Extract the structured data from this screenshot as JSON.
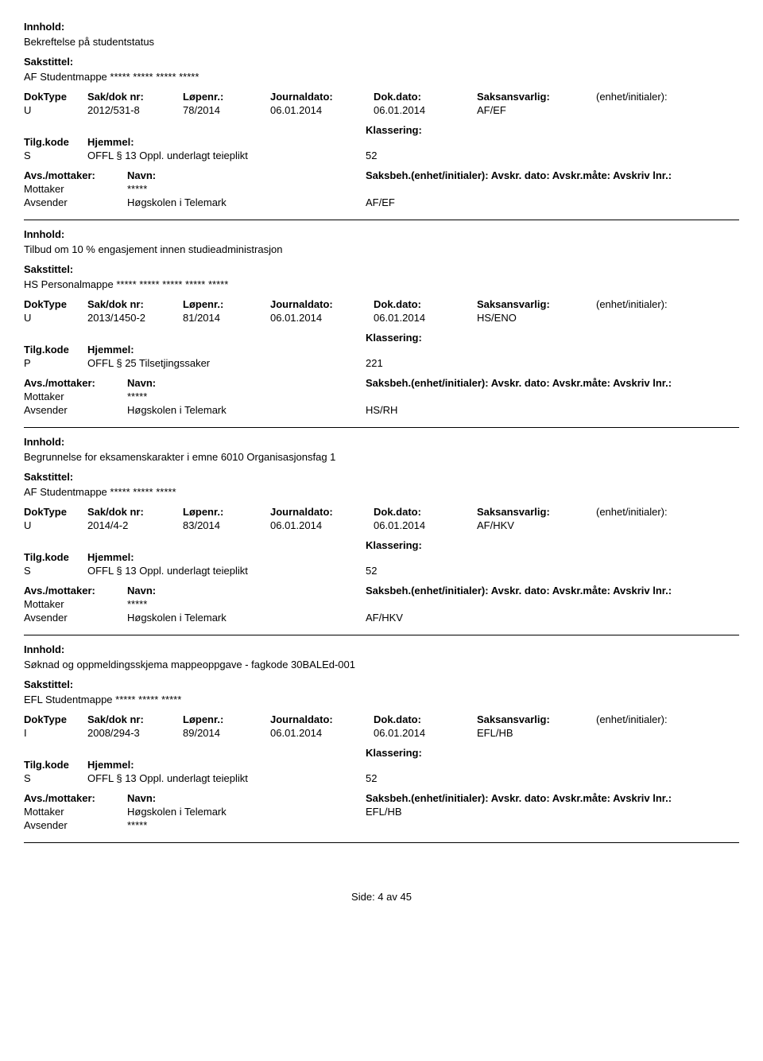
{
  "labels": {
    "innhold": "Innhold:",
    "sakstittel": "Sakstittel:",
    "doktype": "DokType",
    "sakdok": "Sak/dok nr:",
    "lopenr": "Løpenr.:",
    "journaldato": "Journaldato:",
    "dokdato": "Dok.dato:",
    "saksansvarlig": "Saksansvarlig:",
    "enhet": "(enhet/initialer):",
    "tilgkode": "Tilg.kode",
    "hjemmel": "Hjemmel:",
    "klassering": "Klassering:",
    "avsmottaker": "Avs./mottaker:",
    "navn": "Navn:",
    "saksbeh": "Saksbeh.(enhet/initialer): Avskr. dato:  Avskr.måte:  Avskriv lnr.:",
    "mottaker": "Mottaker",
    "avsender": "Avsender"
  },
  "entries": [
    {
      "content": "Bekreftelse på studentstatus",
      "case_title": "AF Studentmappe ***** ***** ***** *****",
      "doktype": "U",
      "sakdok": "2012/531-8",
      "lopenr": "78/2014",
      "jdato": "06.01.2014",
      "ddato": "06.01.2014",
      "saksansvarlig": "AF/EF",
      "tilgkode": "S",
      "hjemmel": "OFFL § 13 Oppl. underlagt teieplikt",
      "klassering": "52",
      "parties": [
        {
          "role": "Mottaker",
          "name": "*****",
          "unit": ""
        },
        {
          "role": "Avsender",
          "name": "Høgskolen i Telemark",
          "unit": "AF/EF"
        }
      ]
    },
    {
      "content": "Tilbud om 10 % engasjement innen studieadministrasjon",
      "case_title": "HS Personalmappe ***** ***** ***** ***** *****",
      "doktype": "U",
      "sakdok": "2013/1450-2",
      "lopenr": "81/2014",
      "jdato": "06.01.2014",
      "ddato": "06.01.2014",
      "saksansvarlig": "HS/ENO",
      "tilgkode": "P",
      "hjemmel": "OFFL § 25 Tilsetjingssaker",
      "klassering": "221",
      "parties": [
        {
          "role": "Mottaker",
          "name": "*****",
          "unit": ""
        },
        {
          "role": "Avsender",
          "name": "Høgskolen i Telemark",
          "unit": "HS/RH"
        }
      ]
    },
    {
      "content": "Begrunnelse for eksamenskarakter i emne 6010 Organisasjonsfag 1",
      "case_title": "AF Studentmappe ***** ***** *****",
      "doktype": "U",
      "sakdok": "2014/4-2",
      "lopenr": "83/2014",
      "jdato": "06.01.2014",
      "ddato": "06.01.2014",
      "saksansvarlig": "AF/HKV",
      "tilgkode": "S",
      "hjemmel": "OFFL § 13 Oppl. underlagt teieplikt",
      "klassering": "52",
      "parties": [
        {
          "role": "Mottaker",
          "name": "*****",
          "unit": ""
        },
        {
          "role": "Avsender",
          "name": "Høgskolen i Telemark",
          "unit": "AF/HKV"
        }
      ]
    },
    {
      "content": "Søknad og oppmeldingsskjema mappeoppgave - fagkode 30BALEd-001",
      "case_title": "EFL Studentmappe ***** ***** *****",
      "doktype": "I",
      "sakdok": "2008/294-3",
      "lopenr": "89/2014",
      "jdato": "06.01.2014",
      "ddato": "06.01.2014",
      "saksansvarlig": "EFL/HB",
      "tilgkode": "S",
      "hjemmel": "OFFL § 13 Oppl. underlagt teieplikt",
      "klassering": "52",
      "parties": [
        {
          "role": "Mottaker",
          "name": "Høgskolen i Telemark",
          "unit": "EFL/HB"
        },
        {
          "role": "Avsender",
          "name": "*****",
          "unit": ""
        }
      ]
    }
  ],
  "footer": "Side: 4 av 45"
}
